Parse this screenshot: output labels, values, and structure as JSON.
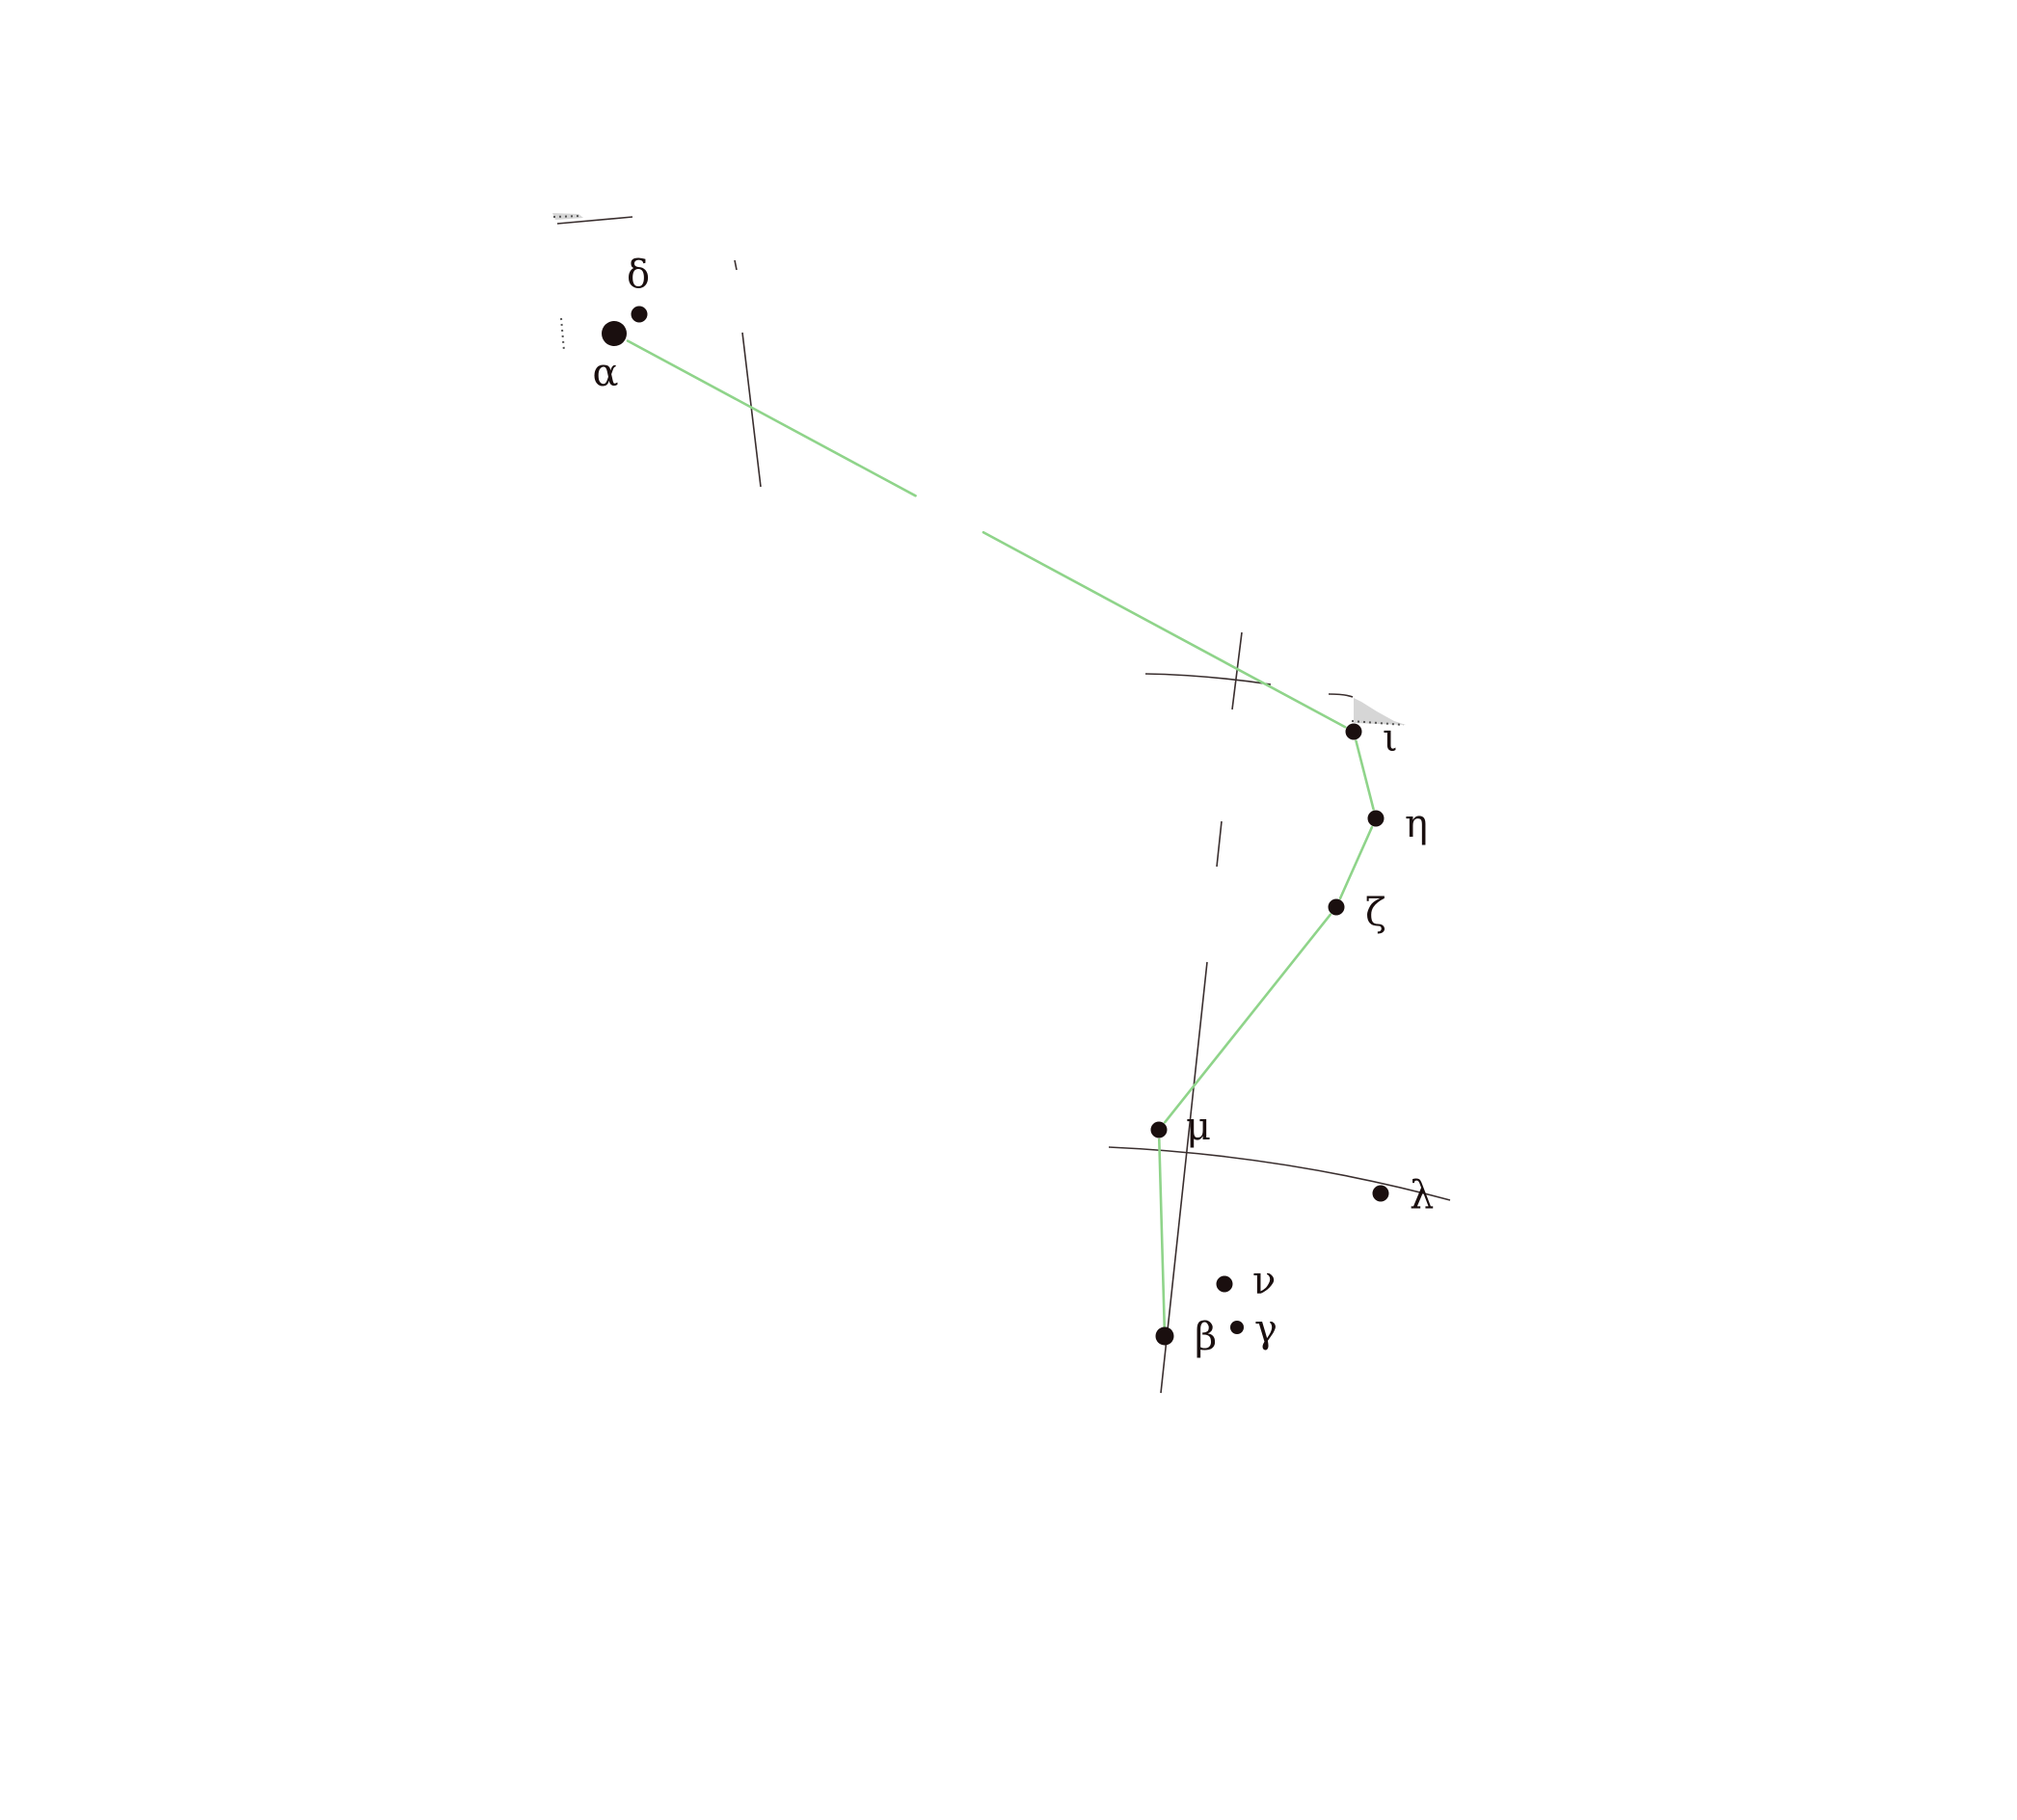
{
  "colors": {
    "background": "#ffffff",
    "star": "#1a0f0f",
    "constellation_line": "#8fd48a",
    "grid_line": "#3a2f2f",
    "boundary_fill": "#d6d6d6",
    "boundary_dots": "#555555"
  },
  "stars": [
    {
      "id": "alpha",
      "label": "α",
      "magnitude_class": "bright"
    },
    {
      "id": "delta",
      "label": "δ",
      "magnitude_class": "medium"
    },
    {
      "id": "iota",
      "label": "ι",
      "magnitude_class": "medium"
    },
    {
      "id": "eta",
      "label": "η",
      "magnitude_class": "medium"
    },
    {
      "id": "zeta",
      "label": "ζ",
      "magnitude_class": "medium"
    },
    {
      "id": "mu",
      "label": "μ",
      "magnitude_class": "medium"
    },
    {
      "id": "lambda",
      "label": "λ",
      "magnitude_class": "medium"
    },
    {
      "id": "nu",
      "label": "ν",
      "magnitude_class": "medium"
    },
    {
      "id": "beta",
      "label": "β",
      "magnitude_class": "medium"
    },
    {
      "id": "gamma",
      "label": "γ",
      "magnitude_class": "faint"
    }
  ],
  "constellation_lines": [
    [
      "alpha",
      "iota"
    ],
    [
      "iota",
      "eta"
    ],
    [
      "eta",
      "zeta"
    ],
    [
      "zeta",
      "mu"
    ],
    [
      "mu",
      "beta"
    ]
  ]
}
